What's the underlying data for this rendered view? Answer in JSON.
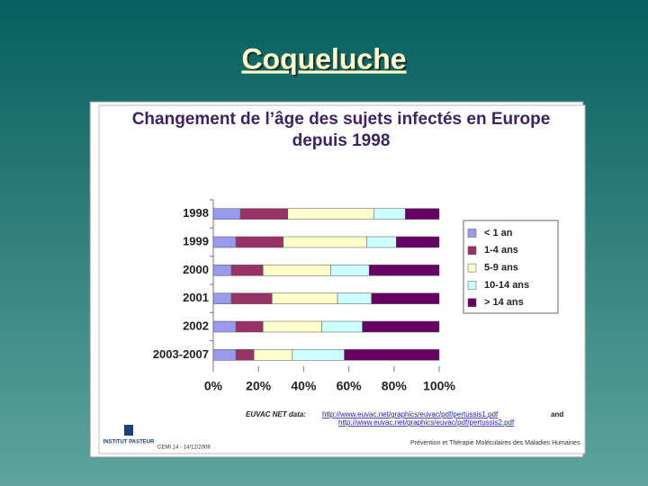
{
  "slide": {
    "title": "Coqueluche",
    "source_label": "EUVAC NET data:",
    "source_links": [
      "http://www.euvac.net/graphics/euvac/pdf/pertussis1.pdf",
      "http://www.euvac.net/graphics/euvac/pdf/pertussis2.pdf"
    ],
    "source_and": "and",
    "logo_text": "INSTITUT PASTEUR",
    "footer_left": "CEMI 14 - 14/12/2009",
    "footer_right": "Prévention et Thérapie Moléculaires des Maladies Humaines"
  },
  "chart_data": {
    "type": "stacked_barh",
    "title": "Changement de l’âge des sujets infectés en Europe depuis 1998",
    "categories": [
      "1998",
      "1999",
      "2000",
      "2001",
      "2002",
      "2003-2007"
    ],
    "series": [
      {
        "name": "< 1 an",
        "color": "#9999ee",
        "values": [
          12,
          10,
          8,
          8,
          10,
          10
        ]
      },
      {
        "name": "1-4 ans",
        "color": "#993366",
        "values": [
          21,
          21,
          14,
          18,
          12,
          8
        ]
      },
      {
        "name": "5-9 ans",
        "color": "#ffffcc",
        "values": [
          38,
          37,
          30,
          29,
          26,
          17
        ]
      },
      {
        "name": "10-14 ans",
        "color": "#ccffff",
        "values": [
          14,
          13,
          17,
          15,
          18,
          23
        ]
      },
      {
        "name": "> 14 ans",
        "color": "#660066",
        "values": [
          15,
          19,
          31,
          30,
          34,
          42
        ]
      }
    ],
    "xlim": [
      0,
      100
    ],
    "xticks": [
      {
        "value": 0,
        "label": "0%"
      },
      {
        "value": 20,
        "label": "20%"
      },
      {
        "value": 40,
        "label": "40%"
      },
      {
        "value": 60,
        "label": "60%"
      },
      {
        "value": 80,
        "label": "80%"
      },
      {
        "value": 100,
        "label": "100%"
      }
    ],
    "legend": "right"
  }
}
